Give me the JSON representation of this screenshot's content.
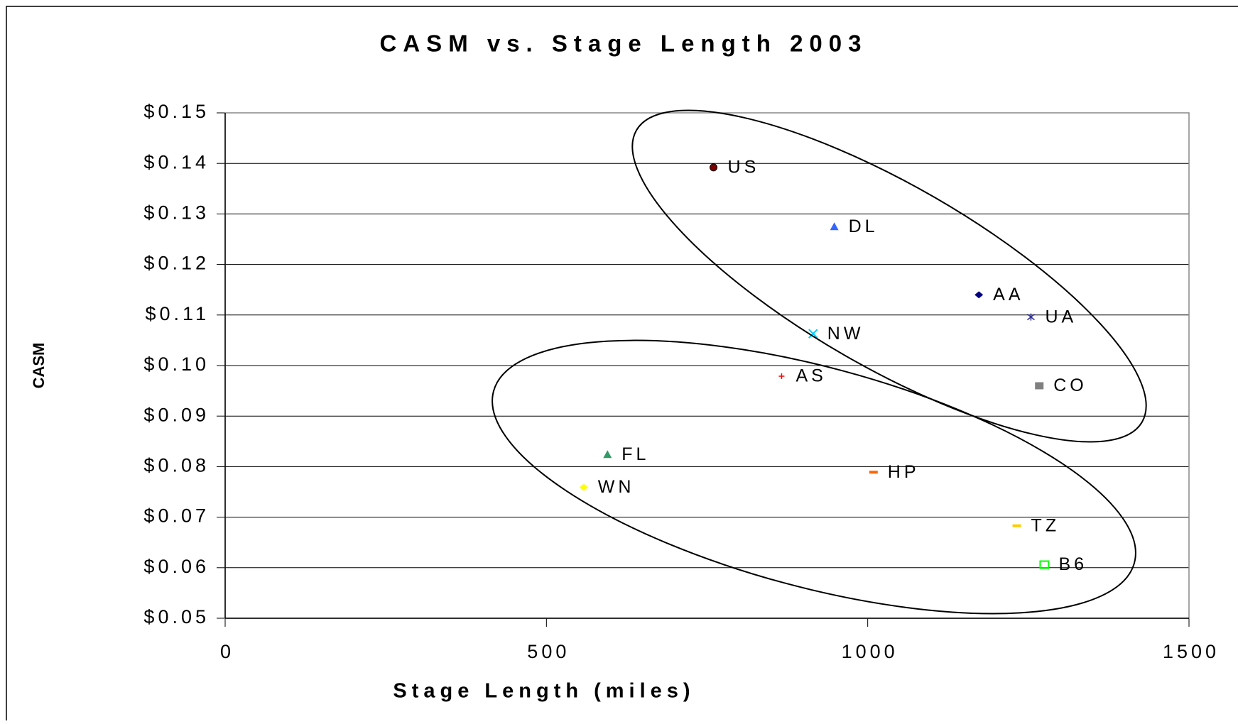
{
  "chart_data": {
    "type": "scatter",
    "title": "CASM vs. Stage Length 2003",
    "x_label": "Stage Length (miles)",
    "y_label": "CASM",
    "xlim": [
      0,
      1500
    ],
    "xticks": [
      0,
      500,
      1000,
      1500
    ],
    "ylim": [
      0.05,
      0.15
    ],
    "yticks": [
      {
        "value": 0.05,
        "label": "$0.05"
      },
      {
        "value": 0.06,
        "label": "$0.06"
      },
      {
        "value": 0.07,
        "label": "$0.07"
      },
      {
        "value": 0.08,
        "label": "$0.08"
      },
      {
        "value": 0.09,
        "label": "$0.09"
      },
      {
        "value": 0.1,
        "label": "$0.10"
      },
      {
        "value": 0.11,
        "label": "$0.11"
      },
      {
        "value": 0.12,
        "label": "$0.12"
      },
      {
        "value": 0.13,
        "label": "$0.13"
      },
      {
        "value": 0.14,
        "label": "$0.14"
      },
      {
        "value": 0.15,
        "label": "$0.15"
      }
    ],
    "grid": true,
    "series": [
      {
        "name": "US",
        "color": "#800000",
        "marker": "circle",
        "x": [
          760
        ],
        "values": [
          0.1392
        ]
      },
      {
        "name": "DL",
        "color": "#3366ff",
        "marker": "triangle",
        "x": [
          948
        ],
        "values": [
          0.1275
        ]
      },
      {
        "name": "AA",
        "color": "#000080",
        "marker": "diamond",
        "x": [
          1173
        ],
        "values": [
          0.114
        ]
      },
      {
        "name": "UA",
        "color": "#333399",
        "marker": "star",
        "x": [
          1254
        ],
        "values": [
          0.1096
        ]
      },
      {
        "name": "NW",
        "color": "#00ccff",
        "marker": "cross",
        "x": [
          915
        ],
        "values": [
          0.1063
        ]
      },
      {
        "name": "AS",
        "color": "#ff0000",
        "marker": "plus",
        "x": [
          866
        ],
        "values": [
          0.0979
        ]
      },
      {
        "name": "CO",
        "color": "#808080",
        "marker": "square",
        "x": [
          1267
        ],
        "values": [
          0.096
        ]
      },
      {
        "name": "FL",
        "color": "#339966",
        "marker": "triangle",
        "x": [
          595
        ],
        "values": [
          0.0824
        ]
      },
      {
        "name": "WN",
        "color": "#ffff00",
        "marker": "diamond",
        "x": [
          558
        ],
        "values": [
          0.0759
        ]
      },
      {
        "name": "HP",
        "color": "#ff6600",
        "marker": "dash",
        "x": [
          1009
        ],
        "values": [
          0.0789
        ]
      },
      {
        "name": "TZ",
        "color": "#ffcc00",
        "marker": "dash",
        "x": [
          1232
        ],
        "values": [
          0.0683
        ]
      },
      {
        "name": "B6",
        "color": "#00ff00",
        "marker": "open-square",
        "x": [
          1275
        ],
        "values": [
          0.0606
        ]
      }
    ]
  }
}
